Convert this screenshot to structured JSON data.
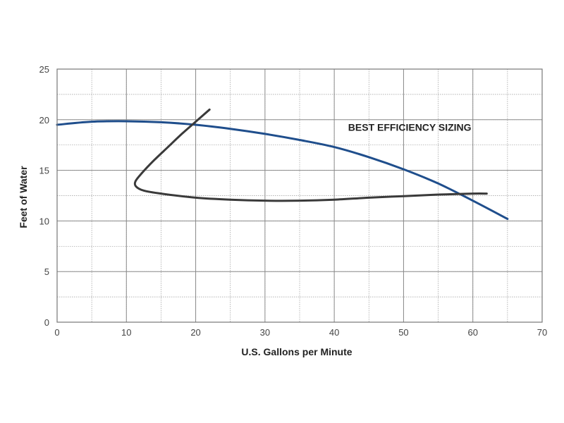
{
  "chart_data": {
    "type": "line",
    "xlabel": "U.S. Gallons per Minute",
    "ylabel": "Feet of Water",
    "xlim": [
      0,
      70
    ],
    "ylim": [
      0,
      25
    ],
    "x_ticks": [
      0,
      10,
      20,
      30,
      40,
      50,
      60,
      70
    ],
    "y_ticks": [
      0,
      5,
      10,
      15,
      20,
      25
    ],
    "x_minor_step": 5,
    "y_minor_step": 2.5,
    "grid": true,
    "annotations": [
      {
        "text": "BEST EFFICIENCY SIZING",
        "x": 42,
        "y": 18.9
      }
    ],
    "series": [
      {
        "color": "#1f4e8c",
        "points": [
          [
            0,
            19.5
          ],
          [
            5,
            19.8
          ],
          [
            10,
            19.85
          ],
          [
            15,
            19.75
          ],
          [
            20,
            19.5
          ],
          [
            25,
            19.1
          ],
          [
            30,
            18.6
          ],
          [
            35,
            18.0
          ],
          [
            40,
            17.3
          ],
          [
            45,
            16.3
          ],
          [
            50,
            15.1
          ],
          [
            55,
            13.7
          ],
          [
            60,
            12.0
          ],
          [
            65,
            10.2
          ]
        ]
      },
      {
        "color": "#3a3a3a",
        "points": [
          [
            22,
            21.0
          ],
          [
            20,
            19.8
          ],
          [
            18,
            18.6
          ],
          [
            16,
            17.3
          ],
          [
            14,
            16.0
          ],
          [
            12.2,
            14.7
          ],
          [
            11.3,
            13.9
          ],
          [
            11.4,
            13.4
          ],
          [
            12.5,
            13.0
          ],
          [
            15,
            12.7
          ],
          [
            20,
            12.3
          ],
          [
            25,
            12.1
          ],
          [
            30,
            12.0
          ],
          [
            35,
            12.0
          ],
          [
            40,
            12.1
          ],
          [
            45,
            12.3
          ],
          [
            50,
            12.45
          ],
          [
            55,
            12.6
          ],
          [
            60,
            12.7
          ],
          [
            62,
            12.7
          ]
        ]
      }
    ]
  }
}
